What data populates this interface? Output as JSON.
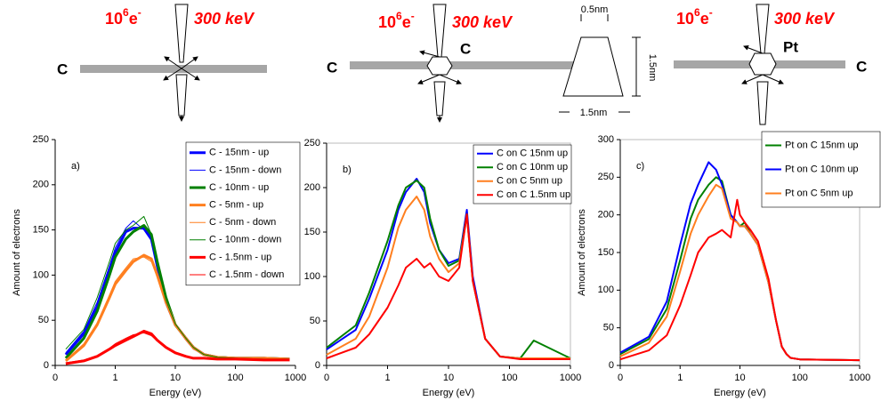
{
  "diagrams": [
    {
      "base": "10",
      "exp": "6",
      "particle": "e",
      "charge": "-",
      "energy": "300 keV",
      "labels": [
        "C"
      ]
    },
    {
      "base": "10",
      "exp": "6",
      "particle": "e",
      "charge": "-",
      "energy": "300 keV",
      "labels": [
        "C",
        "C"
      ],
      "top_width": "0.5nm",
      "height": "1.5nm",
      "bottom_width": "1.5nm"
    },
    {
      "base": "10",
      "exp": "6",
      "particle": "e",
      "charge": "-",
      "energy": "300 keV",
      "labels": [
        "Pt",
        "C"
      ]
    }
  ],
  "chart_data": [
    {
      "type": "line",
      "label": "a)",
      "xlabel": "Energy (eV)",
      "ylabel": "Amount of electrons",
      "xscale": "log",
      "xlim": [
        0.1,
        1000
      ],
      "xticks": [
        {
          "value": 0.1,
          "label": "0"
        },
        1,
        10,
        100,
        1000
      ],
      "ylim": [
        0,
        250
      ],
      "yticks": [
        0,
        50,
        100,
        150,
        200,
        250
      ],
      "x": [
        0.15,
        0.3,
        0.5,
        0.8,
        1,
        1.5,
        2,
        3,
        4,
        5,
        7,
        10,
        15,
        20,
        30,
        50,
        100,
        300,
        800
      ],
      "series": [
        {
          "name": "C - 15nm - up",
          "color": "#0000ff",
          "width": 3,
          "values": [
            12,
            35,
            65,
            105,
            125,
            148,
            152,
            152,
            140,
            110,
            70,
            45,
            30,
            20,
            12,
            9,
            8,
            8,
            7
          ]
        },
        {
          "name": "C - 15nm - down",
          "color": "#0000ff",
          "width": 1,
          "values": [
            14,
            38,
            70,
            110,
            130,
            152,
            160,
            150,
            138,
            108,
            68,
            44,
            28,
            18,
            12,
            9,
            8,
            7,
            7
          ]
        },
        {
          "name": "C - 10nm - up",
          "color": "#008000",
          "width": 3,
          "values": [
            8,
            30,
            60,
            100,
            120,
            140,
            148,
            155,
            145,
            115,
            75,
            45,
            30,
            20,
            12,
            9,
            8,
            8,
            7
          ]
        },
        {
          "name": "C - 5nm - up",
          "color": "#ff7f1f",
          "width": 3,
          "values": [
            5,
            22,
            45,
            75,
            90,
            105,
            115,
            122,
            118,
            100,
            70,
            45,
            30,
            20,
            12,
            9,
            8,
            8,
            7
          ]
        },
        {
          "name": "C - 5nm - down",
          "color": "#ff7f1f",
          "width": 1,
          "values": [
            6,
            24,
            47,
            78,
            93,
            108,
            118,
            120,
            115,
            98,
            68,
            44,
            28,
            18,
            12,
            9,
            8,
            7,
            7
          ]
        },
        {
          "name": "C - 10nm - down",
          "color": "#008000",
          "width": 1,
          "values": [
            18,
            40,
            75,
            115,
            135,
            150,
            155,
            165,
            145,
            110,
            72,
            46,
            30,
            20,
            12,
            9,
            8,
            7,
            7
          ]
        },
        {
          "name": "C - 1.5nm - up",
          "color": "#ff0000",
          "width": 3,
          "values": [
            2,
            5,
            10,
            18,
            22,
            28,
            32,
            38,
            35,
            28,
            20,
            14,
            10,
            8,
            8,
            7,
            7,
            6,
            6
          ]
        },
        {
          "name": "C - 1.5nm - down",
          "color": "#ff0000",
          "width": 1,
          "values": [
            3,
            6,
            11,
            19,
            24,
            30,
            34,
            36,
            33,
            27,
            19,
            13,
            10,
            8,
            8,
            7,
            7,
            6,
            6
          ]
        }
      ]
    },
    {
      "type": "line",
      "label": "b)",
      "xlabel": "Energy (eV)",
      "xscale": "log",
      "xlim": [
        0.1,
        1000
      ],
      "xticks": [
        {
          "value": 0.1,
          "label": "0"
        },
        1,
        10,
        100,
        1000
      ],
      "ylim": [
        0,
        250
      ],
      "yticks": [
        0,
        50,
        100,
        150,
        200,
        250
      ],
      "x": [
        0.1,
        0.3,
        0.5,
        1,
        1.5,
        2,
        3,
        4,
        5,
        7,
        10,
        15,
        20,
        25,
        40,
        70,
        150,
        250,
        1000
      ],
      "series": [
        {
          "name": "C on C 15nm up",
          "color": "#0000ff",
          "width": 2,
          "values": [
            18,
            40,
            75,
            130,
            175,
            195,
            210,
            195,
            160,
            130,
            115,
            120,
            175,
            100,
            30,
            10,
            8,
            8,
            8
          ]
        },
        {
          "name": "C on C 10nm up",
          "color": "#008000",
          "width": 2,
          "values": [
            20,
            45,
            82,
            140,
            180,
            200,
            208,
            200,
            165,
            130,
            112,
            118,
            170,
            95,
            30,
            10,
            8,
            28,
            8
          ]
        },
        {
          "name": "C on C 5nm up",
          "color": "#ff7f1f",
          "width": 2,
          "values": [
            12,
            30,
            55,
            110,
            155,
            175,
            190,
            175,
            145,
            120,
            105,
            115,
            168,
            95,
            30,
            10,
            8,
            8,
            8
          ]
        },
        {
          "name": "C on C 1.5nm up",
          "color": "#ff0000",
          "width": 2,
          "values": [
            8,
            20,
            35,
            65,
            90,
            110,
            120,
            110,
            115,
            100,
            95,
            110,
            170,
            95,
            30,
            10,
            7,
            7,
            7
          ]
        }
      ]
    },
    {
      "type": "line",
      "label": "c)",
      "xlabel": "Energy (eV)",
      "ylabel": "Amount of electrons",
      "xscale": "log",
      "xlim": [
        0.1,
        1000
      ],
      "xticks": [
        {
          "value": 0.1,
          "label": "0"
        },
        1,
        10,
        100,
        1000
      ],
      "ylim": [
        0,
        300
      ],
      "yticks": [
        0,
        50,
        100,
        150,
        200,
        250,
        300
      ],
      "x": [
        0.1,
        0.3,
        0.6,
        1,
        1.5,
        2,
        3,
        4,
        5,
        7,
        9,
        10,
        12,
        15,
        20,
        30,
        40,
        50,
        60,
        70,
        100,
        1000
      ],
      "series": [
        {
          "name": "Pt on C 15nm up",
          "color": "#008000",
          "width": 2,
          "values": [
            15,
            35,
            75,
            140,
            195,
            220,
            240,
            250,
            245,
            200,
            190,
            185,
            190,
            175,
            160,
            110,
            60,
            25,
            15,
            10,
            8,
            7
          ]
        },
        {
          "name": "Pt on C 10nm up",
          "color": "#0000ff",
          "width": 2,
          "values": [
            17,
            38,
            85,
            160,
            215,
            240,
            270,
            260,
            240,
            200,
            190,
            185,
            185,
            175,
            160,
            110,
            60,
            25,
            15,
            10,
            8,
            7
          ]
        },
        {
          "name": "Pt on C 5nm up",
          "color": "#ff7f1f",
          "width": 2,
          "values": [
            12,
            30,
            65,
            125,
            175,
            200,
            225,
            240,
            235,
            195,
            190,
            185,
            185,
            175,
            160,
            110,
            60,
            25,
            15,
            10,
            8,
            7
          ]
        },
        {
          "color": "#ff0000",
          "width": 2,
          "values": [
            8,
            20,
            40,
            80,
            120,
            150,
            170,
            175,
            180,
            170,
            220,
            200,
            190,
            180,
            165,
            115,
            60,
            25,
            15,
            10,
            8,
            7
          ]
        }
      ]
    }
  ]
}
